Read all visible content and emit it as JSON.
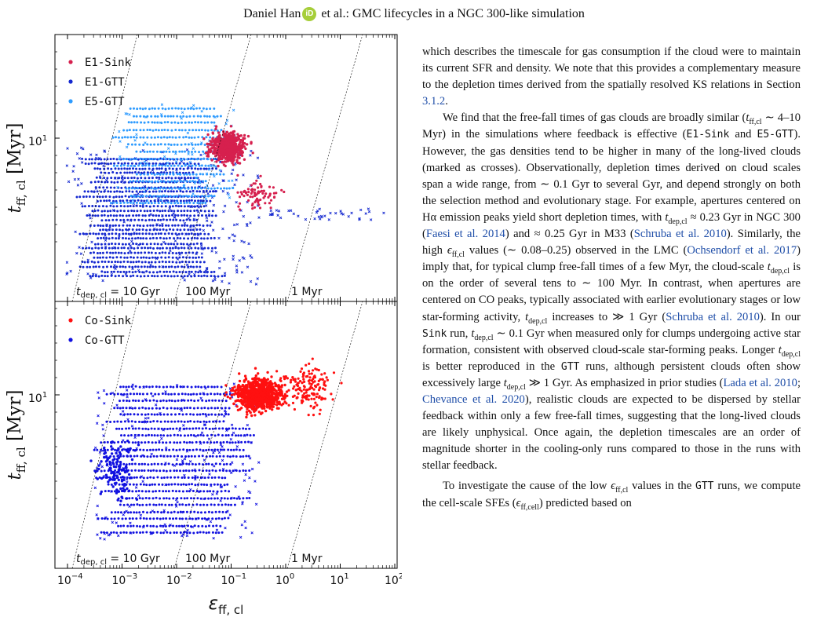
{
  "header": {
    "author": "Daniel Han",
    "orcid_mark": "iD",
    "rest": " et al.: GMC lifecycles in a NGC 300-like simulation"
  },
  "figure": {
    "top_panel": {
      "legend": [
        {
          "label": "E1-Sink",
          "color": "#d6204e"
        },
        {
          "label": "E1-GTT",
          "color": "#1428d0"
        },
        {
          "label": "E5-GTT",
          "color": "#2e9bff"
        }
      ],
      "ylabel": "t_ff,cl [Myr]",
      "ytick": "10",
      "ytick_exp": "1",
      "diag_labels": [
        "t_dep,cl = 10 Gyr",
        "100 Myr",
        "1 Myr"
      ]
    },
    "bottom_panel": {
      "legend": [
        {
          "label": "Co-Sink",
          "color": "#ff1010"
        },
        {
          "label": "Co-GTT",
          "color": "#1010e0"
        }
      ],
      "ylabel": "t_ff,cl [Myr]",
      "ytick": "10",
      "ytick_exp": "1",
      "diag_labels": [
        "t_dep,cl = 10 Gyr",
        "100 Myr",
        "1 Myr"
      ]
    },
    "xlabel": "ε_ff,cl",
    "xticks": [
      {
        "base": "10",
        "exp": "−4"
      },
      {
        "base": "10",
        "exp": "−3"
      },
      {
        "base": "10",
        "exp": "−2"
      },
      {
        "base": "10",
        "exp": "−1"
      },
      {
        "base": "10",
        "exp": "0"
      },
      {
        "base": "10",
        "exp": "1"
      },
      {
        "base": "10",
        "exp": "2"
      }
    ]
  },
  "text": {
    "p1": "which describes the timescale for gas consumption if the cloud were to maintain its current SFR and density. We note that this provides a complementary measure to the depletion times derived from the spatially resolved KS relations in Section ",
    "p1_ref": "3.1.2",
    "p2_a": "We find that the free-fall times of gas clouds are broadly similar (",
    "p2_tff": "t",
    "p2_tff_sub": "ff,cl",
    "p2_b": " ∼ 4–10 Myr) in the simulations where feedback is effective (",
    "p2_run1": "E1-Sink",
    "p2_and": " and ",
    "p2_run2": "E5-GTT",
    "p2_c": "). However, the gas densities tend to be higher in many of the long-lived clouds (marked as crosses). Observationally, depletion times derived on cloud scales span a wide range, from ∼ 0.1 Gyr to several Gyr, and depend strongly on both the selection method and evolutionary stage. For example, apertures centered on Hα emission peaks yield short depletion times, with ",
    "p2_d": " ≈ 0.23 Gyr in NGC 300 (",
    "ref_faesi": "Faesi et al. 2014",
    "p2_e": ") and ≈ 0.25 Gyr in M33 (",
    "ref_schruba": "Schruba et al. 2010",
    "p2_f": "). Similarly, the high ",
    "p2_g": " values (∼ 0.08–0.25) observed in the LMC (",
    "ref_ochs": "Ochsendorf et al. 2017",
    "p2_h": ") imply that, for typical clump free-fall times of a few Myr, the cloud-scale ",
    "p2_i": " is on the order of several tens to ∼ 100 Myr. In contrast, when apertures are centered on CO peaks, typically associated with earlier evolutionary stages or low star-forming activity, ",
    "p2_j": " increases to ≫ 1 Gyr (",
    "p2_k": "). In our ",
    "p2_sink": "Sink",
    "p2_l": " run, ",
    "p2_m": " ∼ 0.1 Gyr when measured only for clumps undergoing active star formation, consistent with observed cloud-scale star-forming peaks. Longer ",
    "p2_n": " is better reproduced in the ",
    "p2_gtt": "GTT",
    "p2_o": " runs, although persistent clouds often show excessively large ",
    "p2_p": " ≫ 1 Gyr. As emphasized in prior studies (",
    "ref_lada": "Lada et al. 2010",
    "ref_sep": "; ",
    "ref_chev": "Chevance et al. 2020",
    "p2_q": "), realistic clouds are expected to be dispersed by stellar feedback within only a few free-fall times, suggesting that the long-lived clouds are likely unphysical. Once again, the depletion timescales are an order of magnitude shorter in the cooling-only runs compared to those in the runs with stellar feedback.",
    "tdep": "t",
    "tdep_sub": "dep,cl",
    "eff": "ϵ",
    "eff_sub": "ff,cl",
    "p3_a": "To investigate the cause of the low ",
    "p3_b": " values in the ",
    "p3_gtt": "GTT",
    "p3_c": " runs, we compute the cell-scale SFEs (",
    "p3_eff": "ϵ",
    "p3_eff_sub": "ff,cell",
    "p3_d": ") predicted based on"
  }
}
